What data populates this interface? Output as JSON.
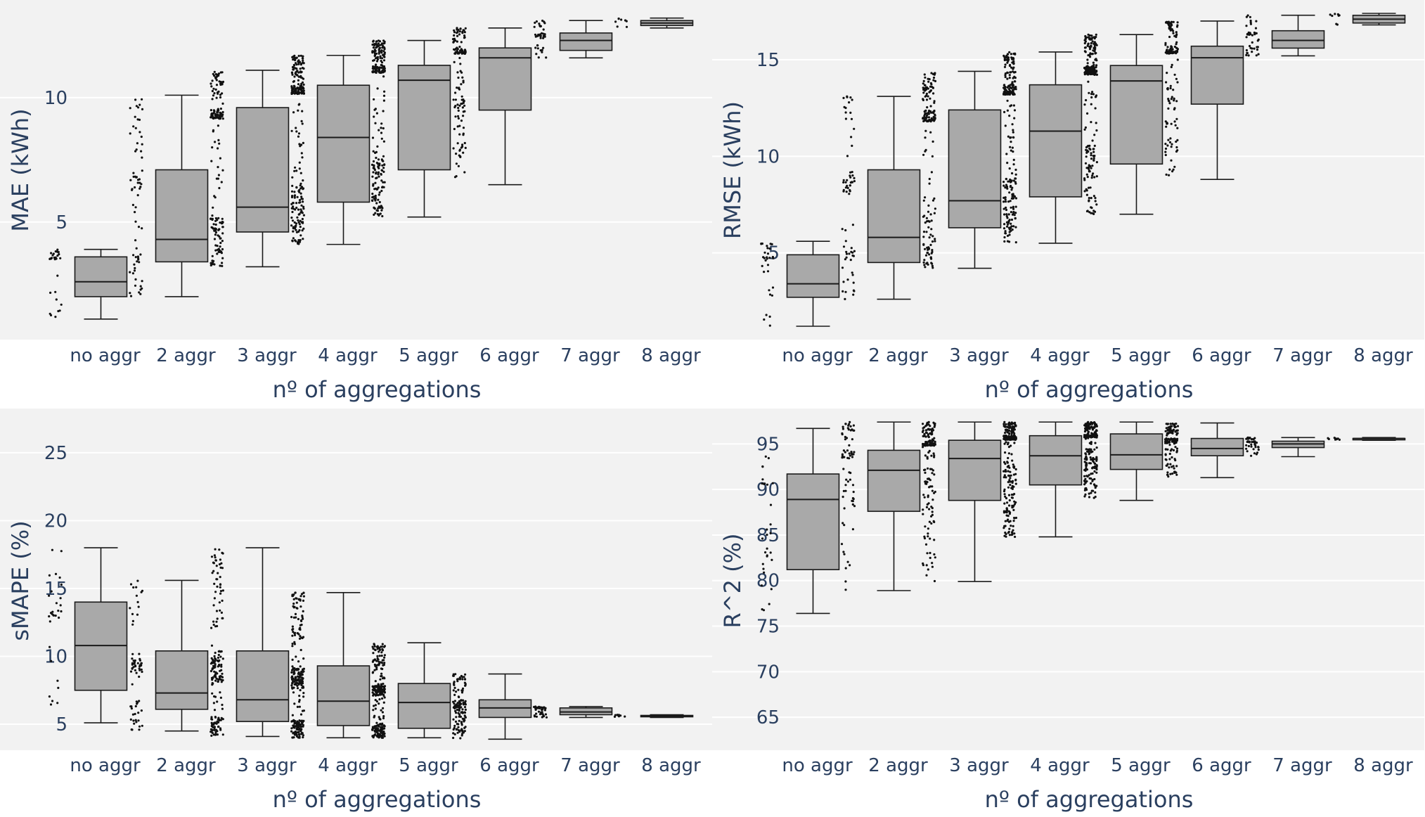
{
  "chart_data": [
    {
      "type": "box",
      "title": "",
      "xlabel": "nº of aggregations",
      "ylabel": "MAE (kWh)",
      "ylim": [
        0.5,
        13.7
      ],
      "yticks": [
        5,
        10
      ],
      "categories": [
        "no aggr",
        "2 aggr",
        "3 aggr",
        "4 aggr",
        "5 aggr",
        "6 aggr",
        "7 aggr",
        "8 aggr"
      ],
      "boxes": [
        {
          "min": 1.1,
          "q1": 2.0,
          "median": 2.6,
          "q3": 3.6,
          "max": 3.9
        },
        {
          "min": 2.0,
          "q1": 3.4,
          "median": 4.3,
          "q3": 7.1,
          "max": 10.1
        },
        {
          "min": 3.2,
          "q1": 4.6,
          "median": 5.6,
          "q3": 9.6,
          "max": 11.1
        },
        {
          "min": 4.1,
          "q1": 5.8,
          "median": 8.4,
          "q3": 10.5,
          "max": 11.7
        },
        {
          "min": 5.2,
          "q1": 7.1,
          "median": 10.7,
          "q3": 11.3,
          "max": 12.3
        },
        {
          "min": 6.5,
          "q1": 9.5,
          "median": 11.6,
          "q3": 12.0,
          "max": 12.8
        },
        {
          "min": 11.6,
          "q1": 11.9,
          "median": 12.3,
          "q3": 12.6,
          "max": 13.1
        },
        {
          "min": 12.8,
          "q1": 12.9,
          "median": 13.0,
          "q3": 13.1,
          "max": 13.2
        }
      ]
    },
    {
      "type": "box",
      "title": "",
      "xlabel": "nº of aggregations",
      "ylabel": "RMSE (kWh)",
      "ylim": [
        0.8,
        17.8
      ],
      "yticks": [
        5,
        10,
        15
      ],
      "categories": [
        "no aggr",
        "2 aggr",
        "3 aggr",
        "4 aggr",
        "5 aggr",
        "6 aggr",
        "7 aggr",
        "8 aggr"
      ],
      "boxes": [
        {
          "min": 1.2,
          "q1": 2.7,
          "median": 3.4,
          "q3": 4.9,
          "max": 5.6
        },
        {
          "min": 2.6,
          "q1": 4.5,
          "median": 5.8,
          "q3": 9.3,
          "max": 13.1
        },
        {
          "min": 4.2,
          "q1": 6.3,
          "median": 7.7,
          "q3": 12.4,
          "max": 14.4
        },
        {
          "min": 5.5,
          "q1": 7.9,
          "median": 11.3,
          "q3": 13.7,
          "max": 15.4
        },
        {
          "min": 7.0,
          "q1": 9.6,
          "median": 13.9,
          "q3": 14.7,
          "max": 16.3
        },
        {
          "min": 8.8,
          "q1": 12.7,
          "median": 15.1,
          "q3": 15.7,
          "max": 17.0
        },
        {
          "min": 15.2,
          "q1": 15.6,
          "median": 16.0,
          "q3": 16.5,
          "max": 17.3
        },
        {
          "min": 16.8,
          "q1": 16.9,
          "median": 17.1,
          "q3": 17.3,
          "max": 17.4
        }
      ]
    },
    {
      "type": "box",
      "title": "",
      "xlabel": "nº of aggregations",
      "ylabel": "sMAPE (%)",
      "ylim": [
        3.5,
        28
      ],
      "yticks": [
        5,
        10,
        15,
        20,
        25
      ],
      "categories": [
        "no aggr",
        "2 aggr",
        "3 aggr",
        "4 aggr",
        "5 aggr",
        "6 aggr",
        "7 aggr",
        "8 aggr"
      ],
      "boxes": [
        {
          "min": 5.1,
          "q1": 7.5,
          "median": 10.8,
          "q3": 14.0,
          "max": 18.0
        },
        {
          "min": 4.5,
          "q1": 6.1,
          "median": 7.3,
          "q3": 10.4,
          "max": 15.6
        },
        {
          "min": 4.1,
          "q1": 5.2,
          "median": 6.8,
          "q3": 10.4,
          "max": 18.0
        },
        {
          "min": 4.0,
          "q1": 4.9,
          "median": 6.7,
          "q3": 9.3,
          "max": 14.7
        },
        {
          "min": 4.0,
          "q1": 4.7,
          "median": 6.6,
          "q3": 8.0,
          "max": 11.0
        },
        {
          "min": 3.9,
          "q1": 5.5,
          "median": 6.2,
          "q3": 6.8,
          "max": 8.7
        },
        {
          "min": 5.5,
          "q1": 5.7,
          "median": 5.9,
          "q3": 6.2,
          "max": 6.3
        },
        {
          "min": 5.5,
          "q1": 5.55,
          "median": 5.6,
          "q3": 5.65,
          "max": 5.7
        }
      ]
    },
    {
      "type": "box",
      "title": "",
      "xlabel": "nº of aggregations",
      "ylabel": "R^2 (%)",
      "ylim": [
        62,
        98.5
      ],
      "yticks": [
        65,
        70,
        75,
        80,
        85,
        90,
        95
      ],
      "categories": [
        "no aggr",
        "2 aggr",
        "3 aggr",
        "4 aggr",
        "5 aggr",
        "6 aggr",
        "7 aggr",
        "8 aggr"
      ],
      "boxes": [
        {
          "min": 76.4,
          "q1": 81.2,
          "median": 88.9,
          "q3": 91.7,
          "max": 96.7
        },
        {
          "min": 78.9,
          "q1": 87.6,
          "median": 92.1,
          "q3": 94.3,
          "max": 97.4
        },
        {
          "min": 79.9,
          "q1": 88.8,
          "median": 93.4,
          "q3": 95.4,
          "max": 97.4
        },
        {
          "min": 84.8,
          "q1": 90.5,
          "median": 93.7,
          "q3": 95.9,
          "max": 97.4
        },
        {
          "min": 88.8,
          "q1": 92.2,
          "median": 93.8,
          "q3": 96.1,
          "max": 97.4
        },
        {
          "min": 91.3,
          "q1": 93.7,
          "median": 94.5,
          "q3": 95.6,
          "max": 97.3
        },
        {
          "min": 93.6,
          "q1": 94.6,
          "median": 95.0,
          "q3": 95.3,
          "max": 95.7
        },
        {
          "min": 95.4,
          "q1": 95.5,
          "median": 95.6,
          "q3": 95.6,
          "max": 95.7
        }
      ]
    }
  ]
}
